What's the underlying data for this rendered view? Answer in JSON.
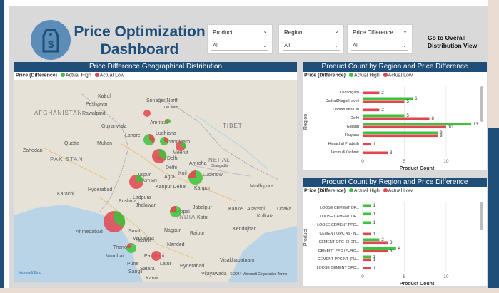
{
  "header": {
    "title": "Price Optimization Dashboard",
    "nav_button": "Go to Overall Distribution View"
  },
  "slicers": [
    {
      "label": "Product",
      "value": "All"
    },
    {
      "label": "Region",
      "value": "All"
    },
    {
      "label": "Price Difference",
      "value": "All"
    }
  ],
  "legend": {
    "title": "Price (Difference)",
    "high": "Actual High",
    "low": "Actual Low"
  },
  "colors": {
    "high": "#3cc23c",
    "low": "#e0464f",
    "navy": "#1f4e79"
  },
  "map_panel": {
    "title": "Price Difference Geographical Distribution",
    "attribution": "Microsoft Bing",
    "copyright": "© 2024 Microsoft Corporation  Terms",
    "countries": [
      "AFGHANISTAN",
      "PAKISTAN",
      "NEPAL",
      "INDIA",
      "TIBET"
    ],
    "places": [
      "Kabul",
      "Peshawar",
      "Rawalpindi",
      "Srinagar North",
      "LADAKH",
      "Amritsar",
      "Gujranwala",
      "Lahore",
      "Ludhiana",
      "Multan",
      "Quetta",
      "Zahedan",
      "Chandigarh",
      "Meerut",
      "New Delhi",
      "Delhi",
      "Amroha",
      "Dhangadhi",
      "Jaipur",
      "Agra",
      "Koil",
      "Lucknow",
      "Kanpur Dehat",
      "Kanpur",
      "Karachi",
      "Hyderabad",
      "RAJASTHAN",
      "Ahmedabad",
      "Vadodara",
      "Bhopal",
      "Jabalpur",
      "Katni",
      "Madhipura",
      "Kolkata",
      "Asansol",
      "Dhaka",
      "Nagpur",
      "Surat",
      "Nashik",
      "Thane",
      "Mumbai",
      "Pune",
      "Satara",
      "Sangli",
      "Karvir",
      "Nanded",
      "Parbhani",
      "Latur",
      "Hyderabad",
      "Vijayawada",
      "Visakhapatnam",
      "Kendujhar",
      "Raipur",
      "Poshina",
      "Ladpura",
      "Jhalawar",
      "Kanke"
    ]
  },
  "chart_data": [
    {
      "type": "bar",
      "title": "Product Count by Region and Price Difference",
      "xlabel": "Product Count",
      "ylabel": "Region",
      "xlim": [
        0,
        13
      ],
      "xticks": [
        0,
        5,
        10
      ],
      "categories": [
        "Chandigarh",
        "Dadra&NagarHaveli",
        "Daman and Diu",
        "Delhi",
        "Gujarat",
        "Haryana",
        "Himachal Pradesh",
        "Jammu&Kashmir"
      ],
      "series": [
        {
          "name": "Actual High",
          "values": [
            0,
            6,
            0,
            5,
            13,
            9,
            0,
            0
          ]
        },
        {
          "name": "Actual Low",
          "values": [
            2,
            5,
            2,
            8,
            10,
            9,
            1,
            3
          ]
        }
      ]
    },
    {
      "type": "bar",
      "title": "Product Count by Region and Price Difference",
      "xlabel": "Product Count",
      "ylabel": "Product",
      "xlim": [
        0,
        13
      ],
      "xticks": [
        0,
        5,
        10
      ],
      "categories": [
        "LOOSE CEMENT OP...",
        "LOOSE CEMENT OP...",
        "LOOSE CEMENT PPC...",
        "CEMENT OPC 43 - N...",
        "CEMENT OPC 43 GR...",
        "CEMENT PPC (PURC...",
        "CEMENT PPC NT (PU...",
        "LOOSE CEMENT OPC..."
      ],
      "series": [
        {
          "name": "Actual High",
          "values": [
            1,
            1,
            1,
            0,
            2,
            4,
            1,
            0
          ]
        },
        {
          "name": "Actual Low",
          "values": [
            0,
            0,
            0,
            1,
            3,
            3,
            1,
            1
          ]
        }
      ]
    }
  ]
}
